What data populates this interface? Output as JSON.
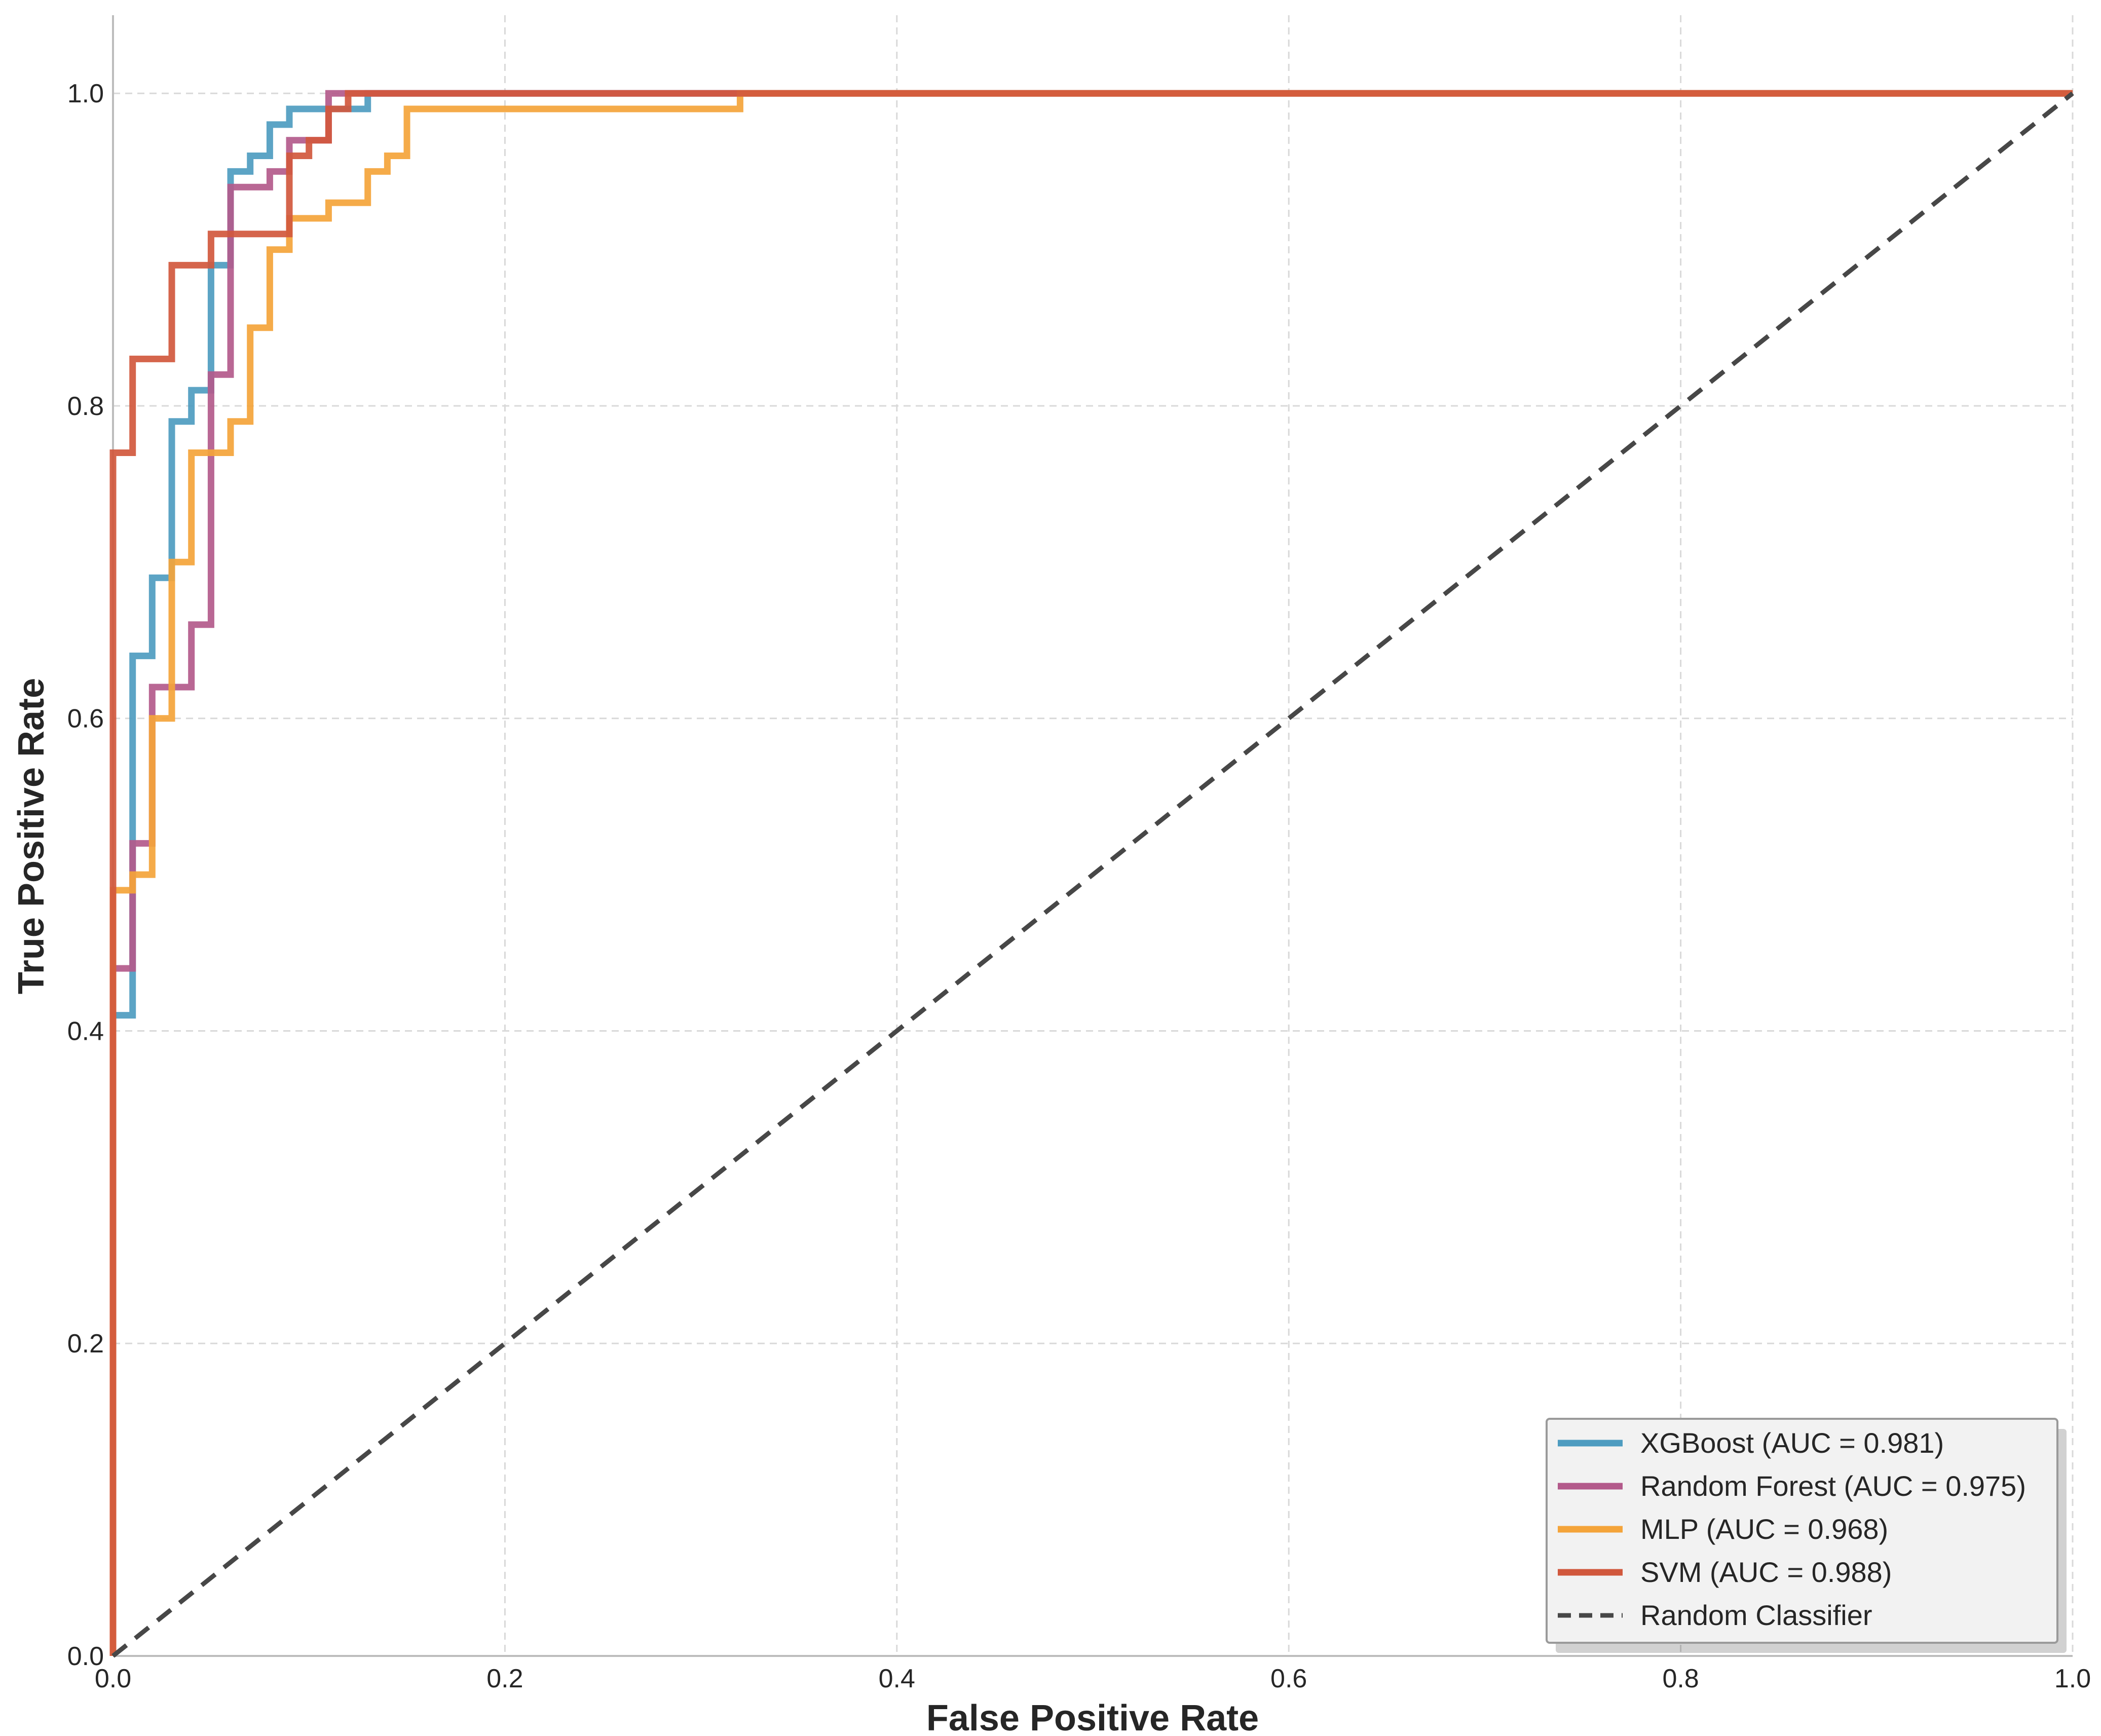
{
  "chart_data": {
    "type": "line",
    "title": "",
    "xlabel": "False Positive Rate",
    "ylabel": "True Positive Rate",
    "xlim": [
      0.0,
      1.0
    ],
    "ylim": [
      0.0,
      1.05
    ],
    "xticks": [
      "0.0",
      "0.2",
      "0.4",
      "0.6",
      "0.8",
      "1.0"
    ],
    "yticks": [
      "0.0",
      "0.2",
      "0.4",
      "0.6",
      "0.8",
      "1.0"
    ],
    "grid": true,
    "legend_position": "bottom-right",
    "series": [
      {
        "name": "XGBoost (AUC = 0.981)",
        "color": "#4e9cc0",
        "x": [
          0.0,
          0.0,
          0.01,
          0.01,
          0.02,
          0.02,
          0.03,
          0.03,
          0.04,
          0.04,
          0.05,
          0.05,
          0.06,
          0.06,
          0.07,
          0.07,
          0.08,
          0.08,
          0.09,
          0.09,
          0.13,
          0.13,
          1.0
        ],
        "y": [
          0.0,
          0.41,
          0.41,
          0.64,
          0.64,
          0.69,
          0.69,
          0.79,
          0.79,
          0.81,
          0.81,
          0.89,
          0.89,
          0.95,
          0.95,
          0.96,
          0.96,
          0.98,
          0.98,
          0.99,
          0.99,
          1.0,
          1.0
        ]
      },
      {
        "name": "Random Forest (AUC = 0.975)",
        "color": "#b35a8b",
        "x": [
          0.0,
          0.0,
          0.01,
          0.01,
          0.02,
          0.02,
          0.04,
          0.04,
          0.05,
          0.05,
          0.06,
          0.06,
          0.08,
          0.08,
          0.09,
          0.09,
          0.11,
          0.11,
          1.0
        ],
        "y": [
          0.0,
          0.44,
          0.44,
          0.52,
          0.52,
          0.62,
          0.62,
          0.66,
          0.66,
          0.82,
          0.82,
          0.94,
          0.94,
          0.95,
          0.95,
          0.97,
          0.97,
          1.0,
          1.0
        ]
      },
      {
        "name": "MLP (AUC = 0.968)",
        "color": "#f4a43a",
        "x": [
          0.0,
          0.0,
          0.01,
          0.01,
          0.02,
          0.02,
          0.03,
          0.03,
          0.04,
          0.04,
          0.06,
          0.06,
          0.07,
          0.07,
          0.08,
          0.08,
          0.09,
          0.09,
          0.11,
          0.11,
          0.13,
          0.13,
          0.14,
          0.14,
          0.15,
          0.15,
          0.32,
          0.32,
          1.0
        ],
        "y": [
          0.0,
          0.49,
          0.49,
          0.5,
          0.5,
          0.6,
          0.6,
          0.7,
          0.7,
          0.77,
          0.77,
          0.79,
          0.79,
          0.85,
          0.85,
          0.9,
          0.9,
          0.92,
          0.92,
          0.93,
          0.93,
          0.95,
          0.95,
          0.96,
          0.96,
          0.99,
          0.99,
          1.0,
          1.0
        ]
      },
      {
        "name": "SVM (AUC = 0.988)",
        "color": "#d1583d",
        "x": [
          0.0,
          0.0,
          0.01,
          0.01,
          0.03,
          0.03,
          0.05,
          0.05,
          0.06,
          0.06,
          0.09,
          0.09,
          0.1,
          0.1,
          0.11,
          0.11,
          0.12,
          0.12,
          1.0
        ],
        "y": [
          0.0,
          0.77,
          0.77,
          0.83,
          0.83,
          0.89,
          0.89,
          0.91,
          0.91,
          0.91,
          0.91,
          0.96,
          0.96,
          0.97,
          0.97,
          0.99,
          0.99,
          1.0,
          1.0
        ]
      },
      {
        "name": "Random Classifier",
        "color": "#474747",
        "dashed": true,
        "x": [
          0.0,
          1.0
        ],
        "y": [
          0.0,
          1.0
        ]
      }
    ]
  }
}
